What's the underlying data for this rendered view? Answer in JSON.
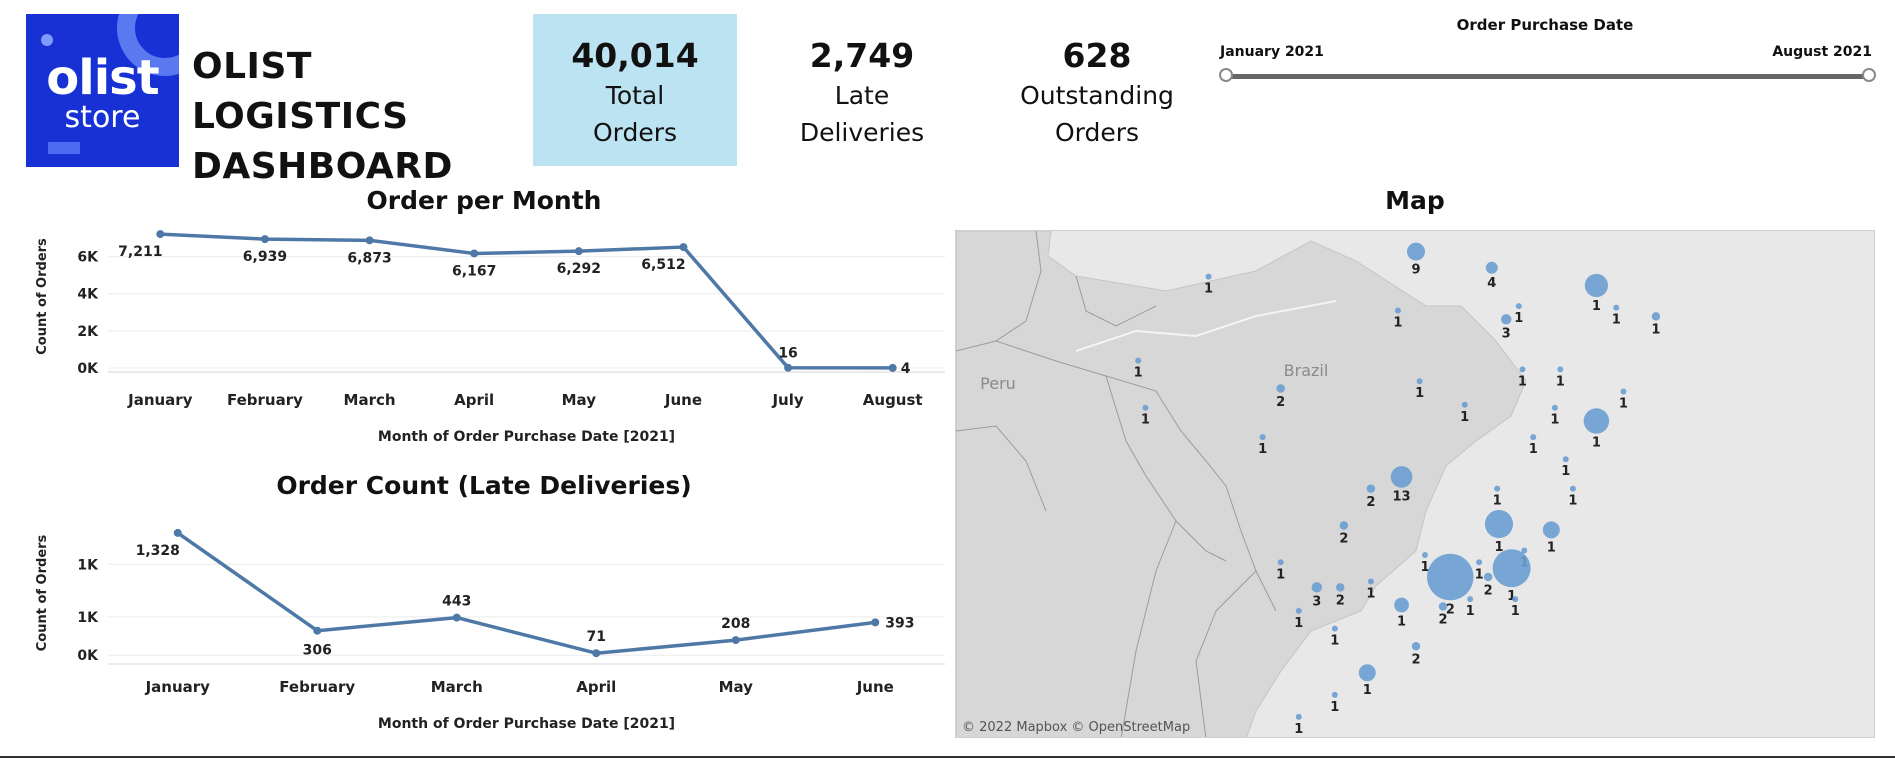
{
  "header": {
    "logo_line1": "olist",
    "logo_line2": "store",
    "title": "OLIST LOGISTICS DASHBOARD"
  },
  "kpis": [
    {
      "value": "40,014",
      "label_line1": "Total",
      "label_line2": "Orders"
    },
    {
      "value": "2,749",
      "label_line1": "Late",
      "label_line2": "Deliveries"
    },
    {
      "value": "628",
      "label_line1": "Outstanding",
      "label_line2": "Orders"
    }
  ],
  "filter": {
    "title": "Order Purchase Date",
    "start": "January 2021",
    "end": "August 2021"
  },
  "colors": {
    "line": "#4e79a7",
    "kpi_highlight": "#bce3f2",
    "logo_bg": "#1731d4",
    "map_dot": "#6c9fd1"
  },
  "chart_data": [
    {
      "type": "line",
      "title": "Order per Month",
      "xlabel": "Month of Order Purchase Date [2021]",
      "ylabel": "Count of Orders",
      "categories": [
        "January",
        "February",
        "March",
        "April",
        "May",
        "June",
        "July",
        "August"
      ],
      "values": [
        7211,
        6939,
        6873,
        6167,
        6292,
        6512,
        16,
        4
      ],
      "value_labels": [
        "7,211",
        "6,939",
        "6,873",
        "6,167",
        "6,292",
        "6,512",
        "16",
        "4"
      ],
      "yticks": [
        "0K",
        "2K",
        "4K",
        "6K"
      ],
      "ylim": [
        0,
        7700
      ],
      "grid": true
    },
    {
      "type": "line",
      "title": "Order Count (Late Deliveries)",
      "xlabel": "Month of Order Purchase Date [2021]",
      "ylabel": "Count of Orders",
      "categories": [
        "January",
        "February",
        "March",
        "April",
        "May",
        "June"
      ],
      "values": [
        1328,
        306,
        443,
        71,
        208,
        393
      ],
      "value_labels": [
        "1,328",
        "306",
        "443",
        "71",
        "208",
        "393"
      ],
      "yticks": [
        "0K",
        "1K",
        "1K"
      ],
      "ylim": [
        0,
        1400
      ],
      "grid": true
    }
  ],
  "map": {
    "title": "Map",
    "country_labels": [
      "Brazil",
      "Peru"
    ],
    "credit": "© 2022 Mapbox  © OpenStreetMap",
    "markers": [
      {
        "label": "1",
        "lon": -63.9,
        "lat": -8.8,
        "size": 1
      },
      {
        "label": "1",
        "lon": -60.0,
        "lat": -3.1,
        "size": 1
      },
      {
        "label": "9",
        "lon": -48.5,
        "lat": -1.4,
        "size": 9
      },
      {
        "label": "1",
        "lon": -49.5,
        "lat": -5.4,
        "size": 1
      },
      {
        "label": "4",
        "lon": -44.3,
        "lat": -2.5,
        "size": 4
      },
      {
        "label": "1",
        "lon": -42.8,
        "lat": -5.1,
        "size": 1
      },
      {
        "label": "3",
        "lon": -43.5,
        "lat": -6.0,
        "size": 3
      },
      {
        "label": "1",
        "lon": -38.5,
        "lat": -3.7,
        "size": 15
      },
      {
        "label": "1",
        "lon": -37.4,
        "lat": -5.2,
        "size": 1
      },
      {
        "label": "1",
        "lon": -35.2,
        "lat": -5.8,
        "size": 2
      },
      {
        "label": "1",
        "lon": -42.6,
        "lat": -9.4,
        "size": 1
      },
      {
        "label": "1",
        "lon": -40.5,
        "lat": -9.4,
        "size": 1
      },
      {
        "label": "1",
        "lon": -37.0,
        "lat": -10.9,
        "size": 1
      },
      {
        "label": "1",
        "lon": -38.5,
        "lat": -12.9,
        "size": 18
      },
      {
        "label": "1",
        "lon": -40.8,
        "lat": -12.0,
        "size": 1
      },
      {
        "label": "1",
        "lon": -48.3,
        "lat": -10.2,
        "size": 1
      },
      {
        "label": "1",
        "lon": -45.8,
        "lat": -11.8,
        "size": 1
      },
      {
        "label": "1",
        "lon": -42.0,
        "lat": -14.0,
        "size": 1
      },
      {
        "label": "1",
        "lon": -40.2,
        "lat": -15.5,
        "size": 1
      },
      {
        "label": "1",
        "lon": -39.8,
        "lat": -17.5,
        "size": 1
      },
      {
        "label": "2",
        "lon": -56.0,
        "lat": -10.7,
        "size": 2
      },
      {
        "label": "1",
        "lon": -63.5,
        "lat": -12.0,
        "size": 1
      },
      {
        "label": "1",
        "lon": -57.0,
        "lat": -14.0,
        "size": 1
      },
      {
        "label": "13",
        "lon": -49.3,
        "lat": -16.7,
        "size": 13
      },
      {
        "label": "2",
        "lon": -51.0,
        "lat": -17.5,
        "size": 2
      },
      {
        "label": "1",
        "lon": -44.0,
        "lat": -17.5,
        "size": 1
      },
      {
        "label": "2",
        "lon": -52.5,
        "lat": -20.0,
        "size": 2
      },
      {
        "label": "1",
        "lon": -43.9,
        "lat": -19.9,
        "size": 22
      },
      {
        "label": "1",
        "lon": -41.0,
        "lat": -20.3,
        "size": 8
      },
      {
        "label": "1",
        "lon": -56.0,
        "lat": -22.5,
        "size": 1
      },
      {
        "label": "1",
        "lon": -48.0,
        "lat": -22.0,
        "size": 1
      },
      {
        "label": "1",
        "lon": -45.0,
        "lat": -22.5,
        "size": 1
      },
      {
        "label": "1",
        "lon": -42.5,
        "lat": -21.7,
        "size": 1
      },
      {
        "label": "2",
        "lon": -46.6,
        "lat": -23.5,
        "size": 60
      },
      {
        "label": "1",
        "lon": -43.2,
        "lat": -22.9,
        "size": 40
      },
      {
        "label": "2",
        "lon": -44.5,
        "lat": -23.5,
        "size": 2
      },
      {
        "label": "1",
        "lon": -43.0,
        "lat": -25.0,
        "size": 1
      },
      {
        "label": "3",
        "lon": -54.0,
        "lat": -24.2,
        "size": 3
      },
      {
        "label": "2",
        "lon": -52.7,
        "lat": -24.2,
        "size": 2
      },
      {
        "label": "1",
        "lon": -51.0,
        "lat": -23.8,
        "size": 1
      },
      {
        "label": "1",
        "lon": -55.0,
        "lat": -25.8,
        "size": 1
      },
      {
        "label": "1",
        "lon": -53.0,
        "lat": -27.0,
        "size": 1
      },
      {
        "label": "1",
        "lon": -49.3,
        "lat": -25.4,
        "size": 6
      },
      {
        "label": "2",
        "lon": -47.0,
        "lat": -25.5,
        "size": 2
      },
      {
        "label": "1",
        "lon": -45.5,
        "lat": -25.0,
        "size": 1
      },
      {
        "label": "2",
        "lon": -48.5,
        "lat": -28.2,
        "size": 2
      },
      {
        "label": "1",
        "lon": -51.2,
        "lat": -30.0,
        "size": 8
      },
      {
        "label": "1",
        "lon": -53.0,
        "lat": -31.5,
        "size": 1
      },
      {
        "label": "1",
        "lon": -55.0,
        "lat": -33.0,
        "size": 1
      }
    ]
  }
}
